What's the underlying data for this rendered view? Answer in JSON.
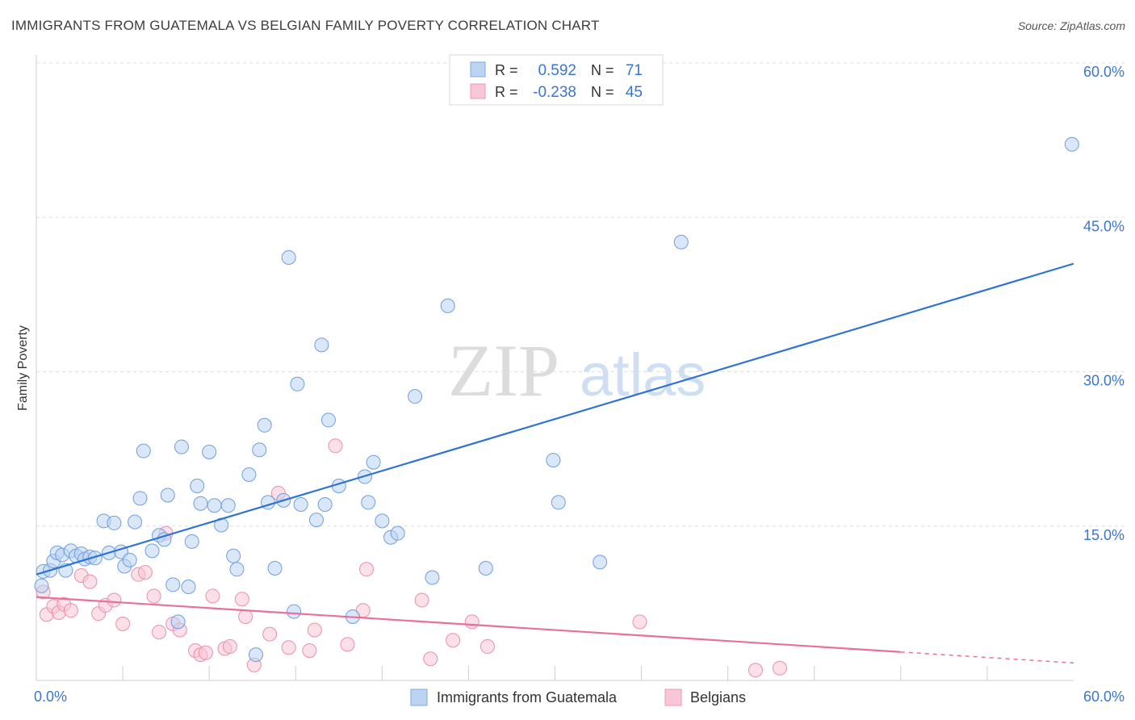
{
  "header": {
    "title": "IMMIGRANTS FROM GUATEMALA VS BELGIAN FAMILY POVERTY CORRELATION CHART",
    "source": "Source: ZipAtlas.com"
  },
  "watermark": {
    "zip": "ZIP",
    "atlas": "atlas"
  },
  "colors": {
    "blue": "#2f74d0",
    "blue_fill": "#bcd4f2",
    "pink": "#e8709a",
    "pink_fill": "#f8c6d6",
    "value_text": "#3a76cf"
  },
  "legend_box": {
    "rows": [
      {
        "r_label": "R =",
        "r_value": "0.592",
        "n_label": "N =",
        "n_value": "71"
      },
      {
        "r_label": "R =",
        "r_value": "-0.238",
        "n_label": "N =",
        "n_value": "45"
      }
    ]
  },
  "chart_data": {
    "type": "scatter",
    "title": "IMMIGRANTS FROM GUATEMALA VS BELGIAN FAMILY POVERTY CORRELATION CHART",
    "xlabel": "",
    "ylabel": "Family Poverty",
    "xlim": [
      0,
      60
    ],
    "ylim": [
      0,
      60
    ],
    "x_tick_labels": [
      "0.0%",
      "60.0%"
    ],
    "y_ticks": [
      15,
      30,
      45,
      60
    ],
    "y_tick_labels": [
      "15.0%",
      "30.0%",
      "45.0%",
      "60.0%"
    ],
    "grid": true,
    "legend_position": "bottom-center",
    "series": [
      {
        "name": "Immigrants from Guatemala",
        "R": 0.592,
        "N": 71,
        "trend": {
          "x": [
            0,
            60
          ],
          "y": [
            10.3,
            40.5
          ],
          "dashed_from_x": null
        },
        "points": [
          [
            0.3,
            9.2
          ],
          [
            0.4,
            10.6
          ],
          [
            0.8,
            10.7
          ],
          [
            1.0,
            11.6
          ],
          [
            1.2,
            12.4
          ],
          [
            1.5,
            12.2
          ],
          [
            1.7,
            10.7
          ],
          [
            2.0,
            12.6
          ],
          [
            2.3,
            12.1
          ],
          [
            2.6,
            12.3
          ],
          [
            2.8,
            11.8
          ],
          [
            3.1,
            12.0
          ],
          [
            3.4,
            11.9
          ],
          [
            3.9,
            15.5
          ],
          [
            4.2,
            12.4
          ],
          [
            4.5,
            15.3
          ],
          [
            4.9,
            12.5
          ],
          [
            5.1,
            11.1
          ],
          [
            5.4,
            11.7
          ],
          [
            5.7,
            15.4
          ],
          [
            6.0,
            17.7
          ],
          [
            6.2,
            22.3
          ],
          [
            6.7,
            12.6
          ],
          [
            7.1,
            14.1
          ],
          [
            7.4,
            13.7
          ],
          [
            7.6,
            18.0
          ],
          [
            7.9,
            9.3
          ],
          [
            8.2,
            5.7
          ],
          [
            8.4,
            22.7
          ],
          [
            8.8,
            9.1
          ],
          [
            9.0,
            13.5
          ],
          [
            9.3,
            18.9
          ],
          [
            9.5,
            17.2
          ],
          [
            10.0,
            22.2
          ],
          [
            10.3,
            17.0
          ],
          [
            10.7,
            15.1
          ],
          [
            11.1,
            17.0
          ],
          [
            11.4,
            12.1
          ],
          [
            11.6,
            10.8
          ],
          [
            12.3,
            20.0
          ],
          [
            12.7,
            2.5
          ],
          [
            12.9,
            22.4
          ],
          [
            13.2,
            24.8
          ],
          [
            13.4,
            17.3
          ],
          [
            13.8,
            10.9
          ],
          [
            14.3,
            17.5
          ],
          [
            14.6,
            41.1
          ],
          [
            14.9,
            6.7
          ],
          [
            15.1,
            28.8
          ],
          [
            15.3,
            17.1
          ],
          [
            16.2,
            15.6
          ],
          [
            16.5,
            32.6
          ],
          [
            16.7,
            17.1
          ],
          [
            16.9,
            25.3
          ],
          [
            17.5,
            18.9
          ],
          [
            18.3,
            6.2
          ],
          [
            19.0,
            19.8
          ],
          [
            19.2,
            17.3
          ],
          [
            19.5,
            21.2
          ],
          [
            20.0,
            15.5
          ],
          [
            20.5,
            13.9
          ],
          [
            20.9,
            14.3
          ],
          [
            21.9,
            27.6
          ],
          [
            22.9,
            10.0
          ],
          [
            23.8,
            36.4
          ],
          [
            26.0,
            10.9
          ],
          [
            29.9,
            21.4
          ],
          [
            30.2,
            17.3
          ],
          [
            32.6,
            11.5
          ],
          [
            37.3,
            42.6
          ],
          [
            59.9,
            52.1
          ]
        ]
      },
      {
        "name": "Belgians",
        "R": -0.238,
        "N": 45,
        "trend": {
          "x": [
            0,
            60
          ],
          "y": [
            8.1,
            1.7
          ],
          "dashed_from_x": 50
        },
        "points": [
          [
            0.4,
            8.6
          ],
          [
            0.6,
            6.4
          ],
          [
            1.0,
            7.2
          ],
          [
            1.3,
            6.6
          ],
          [
            1.6,
            7.4
          ],
          [
            2.0,
            6.8
          ],
          [
            2.6,
            10.2
          ],
          [
            3.1,
            9.6
          ],
          [
            3.6,
            6.5
          ],
          [
            4.0,
            7.3
          ],
          [
            4.5,
            7.8
          ],
          [
            5.0,
            5.5
          ],
          [
            5.9,
            10.3
          ],
          [
            6.3,
            10.5
          ],
          [
            6.8,
            8.2
          ],
          [
            7.1,
            4.7
          ],
          [
            7.5,
            14.3
          ],
          [
            7.9,
            5.5
          ],
          [
            8.3,
            4.9
          ],
          [
            9.2,
            2.9
          ],
          [
            9.5,
            2.5
          ],
          [
            9.8,
            2.7
          ],
          [
            10.2,
            8.2
          ],
          [
            10.9,
            3.1
          ],
          [
            11.2,
            3.3
          ],
          [
            11.9,
            7.9
          ],
          [
            12.1,
            6.2
          ],
          [
            12.6,
            1.5
          ],
          [
            13.5,
            4.5
          ],
          [
            14.0,
            18.2
          ],
          [
            14.6,
            3.2
          ],
          [
            15.8,
            2.9
          ],
          [
            16.1,
            4.9
          ],
          [
            17.3,
            22.8
          ],
          [
            18.0,
            3.5
          ],
          [
            18.9,
            6.8
          ],
          [
            19.1,
            10.8
          ],
          [
            22.3,
            7.8
          ],
          [
            22.8,
            2.1
          ],
          [
            24.1,
            3.9
          ],
          [
            25.2,
            5.7
          ],
          [
            26.1,
            3.3
          ],
          [
            34.9,
            5.7
          ],
          [
            41.6,
            1.0
          ],
          [
            43.0,
            1.2
          ]
        ]
      }
    ]
  }
}
